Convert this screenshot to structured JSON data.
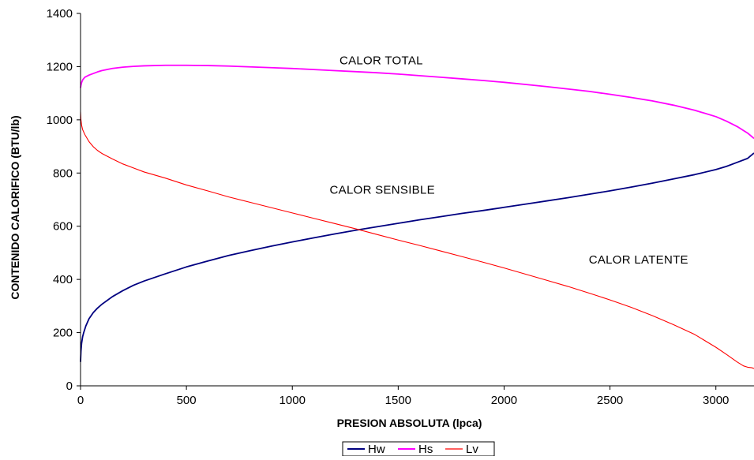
{
  "chart_data": {
    "type": "line",
    "xlabel": "PRESION ABSOLUTA (lpca)",
    "ylabel": "CONTENIDO CALORIFICO  (BTU/lb)",
    "xlim": [
      0,
      3180
    ],
    "ylim": [
      0,
      1400
    ],
    "xticks": [
      0,
      500,
      1000,
      1500,
      2000,
      2500,
      3000
    ],
    "yticks": [
      0,
      200,
      400,
      600,
      800,
      1000,
      1200,
      1400
    ],
    "grid": false,
    "legend_position": "bottom-center",
    "annotations": [
      {
        "text": "CALOR TOTAL",
        "x": 1420,
        "y": 1208
      },
      {
        "text": "CALOR SENSIBLE",
        "x": 1425,
        "y": 722
      },
      {
        "text": "CALOR  LATENTE",
        "x": 2635,
        "y": 460
      }
    ],
    "series": [
      {
        "name": "Hw",
        "color": "#000080",
        "x": [
          0,
          2,
          5,
          10,
          15,
          25,
          40,
          60,
          80,
          100,
          150,
          200,
          250,
          300,
          400,
          500,
          600,
          700,
          800,
          900,
          1000,
          1100,
          1200,
          1300,
          1400,
          1500,
          1600,
          1700,
          1800,
          1900,
          2000,
          2100,
          2200,
          2300,
          2400,
          2500,
          2600,
          2700,
          2800,
          2900,
          3000,
          3050,
          3100,
          3150,
          3180
        ],
        "values": [
          90,
          130,
          160,
          185,
          200,
          225,
          252,
          275,
          292,
          306,
          335,
          358,
          378,
          394,
          421,
          447,
          469,
          490,
          508,
          525,
          541,
          556,
          571,
          585,
          598,
          611,
          624,
          636,
          648,
          659,
          671,
          683,
          695,
          707,
          720,
          733,
          747,
          762,
          778,
          794,
          813,
          825,
          840,
          855,
          875
        ]
      },
      {
        "name": "Hs",
        "color": "#ff00ff",
        "x": [
          0,
          2,
          5,
          10,
          20,
          40,
          60,
          80,
          100,
          150,
          200,
          250,
          300,
          400,
          500,
          600,
          700,
          800,
          900,
          1000,
          1100,
          1200,
          1300,
          1400,
          1500,
          1600,
          1700,
          1800,
          1900,
          2000,
          2100,
          2200,
          2300,
          2400,
          2500,
          2600,
          2700,
          2800,
          2900,
          3000,
          3050,
          3100,
          3150,
          3180
        ],
        "values": [
          1120,
          1130,
          1140,
          1150,
          1160,
          1168,
          1174,
          1180,
          1185,
          1193,
          1198,
          1201,
          1203,
          1205,
          1205,
          1204,
          1202,
          1199,
          1196,
          1193,
          1189,
          1185,
          1181,
          1177,
          1172,
          1166,
          1160,
          1154,
          1148,
          1141,
          1133,
          1125,
          1116,
          1107,
          1096,
          1084,
          1071,
          1055,
          1036,
          1012,
          995,
          975,
          950,
          930
        ]
      },
      {
        "name": "Lv",
        "color": "#ff0000",
        "x": [
          0,
          2,
          5,
          10,
          20,
          40,
          60,
          80,
          100,
          150,
          200,
          250,
          300,
          400,
          500,
          600,
          700,
          800,
          900,
          1000,
          1100,
          1200,
          1300,
          1400,
          1500,
          1600,
          1700,
          1800,
          1900,
          2000,
          2100,
          2200,
          2300,
          2400,
          2500,
          2600,
          2700,
          2800,
          2900,
          3000,
          3050,
          3100,
          3130,
          3150,
          3170,
          3180
        ],
        "values": [
          1030,
          1000,
          980,
          963,
          945,
          918,
          899,
          885,
          874,
          853,
          834,
          819,
          804,
          781,
          755,
          733,
          710,
          690,
          670,
          650,
          630,
          610,
          590,
          569,
          548,
          528,
          507,
          486,
          465,
          443,
          420,
          397,
          374,
          349,
          323,
          295,
          264,
          230,
          193,
          145,
          118,
          90,
          75,
          70,
          68,
          65
        ]
      }
    ]
  }
}
